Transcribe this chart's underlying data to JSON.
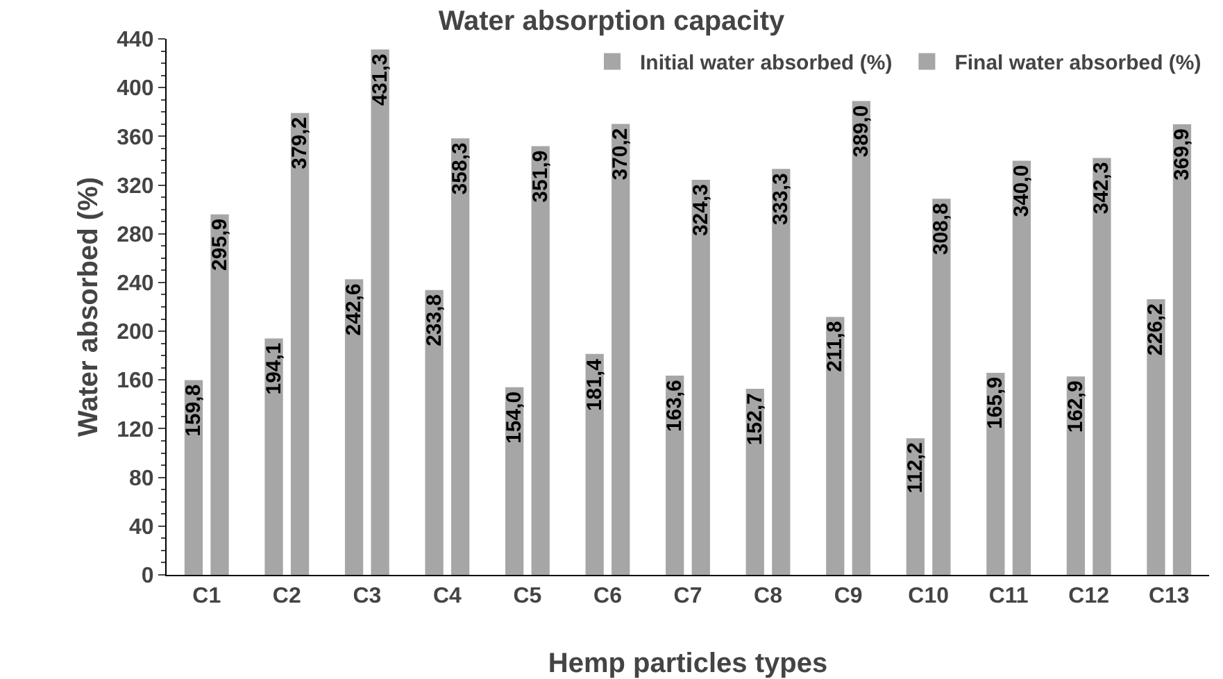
{
  "chart_data": {
    "type": "bar",
    "title": "Water absorption capacity",
    "xlabel": "Hemp particles types",
    "ylabel": "Water absorbed (%)",
    "categories": [
      "C1",
      "C2",
      "C3",
      "C4",
      "C5",
      "C6",
      "C7",
      "C8",
      "C9",
      "C10",
      "C11",
      "C12",
      "C13"
    ],
    "series": [
      {
        "name": "Initial water absorbed (%)",
        "color": "#a6a6a6",
        "values": [
          159.8,
          194.1,
          242.6,
          233.8,
          154.0,
          181.4,
          163.6,
          152.7,
          211.8,
          112.2,
          165.9,
          162.9,
          226.2
        ],
        "value_labels": [
          "159,8",
          "194,1",
          "242,6",
          "233,8",
          "154,0",
          "181,4",
          "163,6",
          "152,7",
          "211,8",
          "112,2",
          "165,9",
          "162,9",
          "226,2"
        ]
      },
      {
        "name": "Final water absorbed (%)",
        "color": "#a6a6a6",
        "values": [
          295.9,
          379.2,
          431.3,
          358.3,
          351.9,
          370.2,
          324.3,
          333.3,
          389.0,
          308.8,
          340.0,
          342.3,
          369.9
        ],
        "value_labels": [
          "295,9",
          "379,2",
          "431,3",
          "358,3",
          "351,9",
          "370,2",
          "324,3",
          "333,3",
          "389,0",
          "308,8",
          "340,0",
          "342,3",
          "369,9"
        ]
      }
    ],
    "ylim": [
      0,
      440
    ],
    "yticks": [
      0,
      40,
      80,
      120,
      160,
      200,
      240,
      280,
      320,
      360,
      400,
      440
    ],
    "grid": false,
    "legend": "top right"
  }
}
